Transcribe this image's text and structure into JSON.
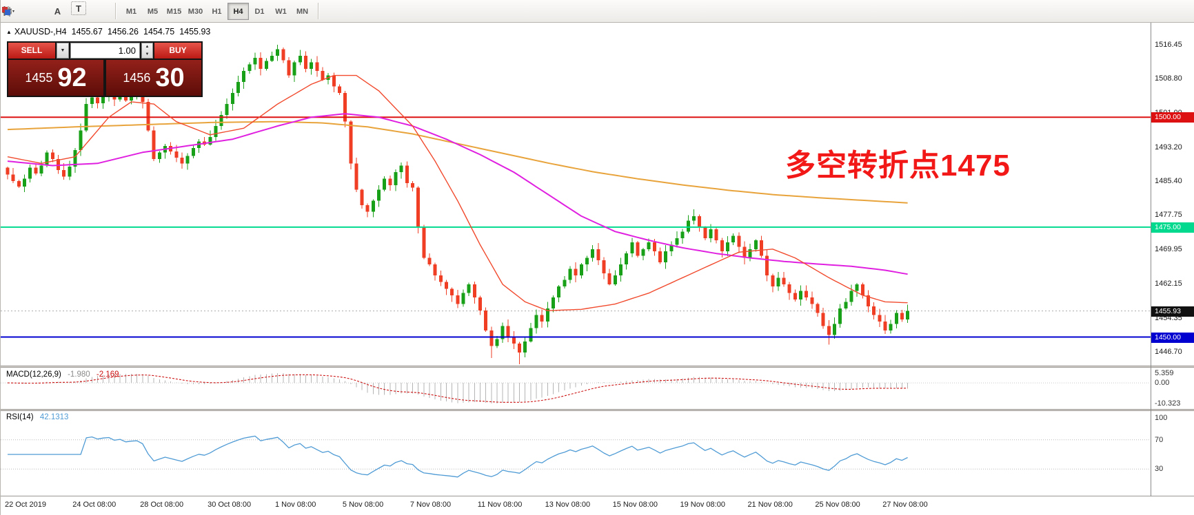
{
  "toolbar": {
    "icons": [
      {
        "name": "chart-type-icon"
      },
      {
        "name": "grid-icon"
      },
      {
        "name": "font-icon",
        "glyph": "A"
      },
      {
        "name": "text-label-icon",
        "glyph": "T"
      },
      {
        "name": "palette-icon"
      }
    ],
    "timeframes": [
      "M1",
      "M5",
      "M15",
      "M30",
      "H1",
      "H4",
      "D1",
      "W1",
      "MN"
    ],
    "active_timeframe": "H4"
  },
  "trade_panel": {
    "sell_label": "SELL",
    "buy_label": "BUY",
    "volume": "1.00",
    "sell_price": {
      "main": "1455",
      "pips": "92"
    },
    "buy_price": {
      "main": "1456",
      "pips": "30"
    }
  },
  "chart_header": {
    "symbol": "XAUUSD-,H4",
    "open": "1455.67",
    "high": "1456.26",
    "low": "1454.75",
    "close": "1455.93"
  },
  "annotation": {
    "text": "多空转折点1475",
    "color": "#f21818"
  },
  "chart_data": {
    "type": "candlestick",
    "symbol": "XAUUSD",
    "timeframe": "H4",
    "ylim": [
      1443.5,
      1521.5
    ],
    "open_rule": "previous_close",
    "candle_colors": {
      "up": "#18a018",
      "down": "#ef3e24"
    },
    "closes": [
      1487.0,
      1485.5,
      1484.2,
      1486.0,
      1488.5,
      1487.2,
      1489.0,
      1492.0,
      1490.5,
      1488.0,
      1486.5,
      1488.8,
      1492.5,
      1497.0,
      1503.0,
      1504.5,
      1503.2,
      1504.8,
      1505.5,
      1504.0,
      1505.2,
      1503.8,
      1504.6,
      1505.0,
      1503.5,
      1497.0,
      1490.5,
      1492.0,
      1493.5,
      1492.2,
      1490.8,
      1489.5,
      1491.2,
      1493.0,
      1494.5,
      1493.8,
      1495.5,
      1498.0,
      1500.5,
      1503.0,
      1505.5,
      1508.0,
      1510.5,
      1512.0,
      1513.5,
      1511.0,
      1512.8,
      1514.0,
      1515.5,
      1513.0,
      1509.5,
      1512.5,
      1514.0,
      1511.0,
      1512.5,
      1510.5,
      1508.5,
      1509.5,
      1507.0,
      1505.5,
      1499.0,
      1489.5,
      1483.5,
      1480.0,
      1478.5,
      1481.0,
      1483.5,
      1486.0,
      1484.5,
      1487.5,
      1489.0,
      1485.0,
      1484.0,
      1475.0,
      1468.0,
      1466.5,
      1464.0,
      1462.5,
      1461.0,
      1459.5,
      1457.5,
      1460.0,
      1462.0,
      1459.0,
      1456.0,
      1451.5,
      1448.0,
      1449.5,
      1452.5,
      1450.0,
      1448.5,
      1446.5,
      1449.0,
      1452.0,
      1455.0,
      1453.5,
      1456.5,
      1459.0,
      1461.5,
      1463.0,
      1465.5,
      1464.0,
      1466.5,
      1468.0,
      1470.0,
      1467.5,
      1464.5,
      1462.0,
      1464.0,
      1466.5,
      1469.0,
      1471.5,
      1468.5,
      1470.0,
      1471.5,
      1469.5,
      1467.0,
      1469.5,
      1471.0,
      1472.5,
      1474.0,
      1476.5,
      1477.5,
      1475.0,
      1472.5,
      1474.5,
      1472.0,
      1469.5,
      1471.5,
      1473.0,
      1470.5,
      1468.0,
      1470.0,
      1472.0,
      1468.5,
      1464.0,
      1461.5,
      1463.5,
      1462.0,
      1460.0,
      1458.5,
      1460.5,
      1459.0,
      1457.5,
      1455.5,
      1452.5,
      1450.5,
      1453.0,
      1456.5,
      1458.0,
      1460.5,
      1462.0,
      1459.5,
      1457.0,
      1455.0,
      1453.5,
      1451.5,
      1453.0,
      1455.5,
      1454.0,
      1455.93
    ],
    "high_overrides": {
      "48": 1516.45
    },
    "low_overrides": {
      "86": 1445.2,
      "91": 1443.8,
      "146": 1448.3
    },
    "price_ticks": [
      1516.45,
      1508.8,
      1501.0,
      1493.2,
      1485.4,
      1477.75,
      1469.95,
      1462.15,
      1454.35,
      1446.7
    ],
    "hlines": [
      {
        "value": 1500.0,
        "label": "1500.00",
        "color": "#dd1111"
      },
      {
        "value": 1475.0,
        "label": "1475.00",
        "color": "#00d98e"
      },
      {
        "value": 1450.0,
        "label": "1450.00",
        "color": "#0000d0"
      }
    ],
    "current_price": {
      "value": 1455.93,
      "label": "1455.93",
      "color": "#111111"
    },
    "date_ticks": [
      {
        "label": "22 Oct 2019",
        "bar": 0
      },
      {
        "label": "24 Oct 08:00",
        "bar": 14
      },
      {
        "label": "28 Oct 08:00",
        "bar": 26
      },
      {
        "label": "30 Oct 08:00",
        "bar": 38
      },
      {
        "label": "1 Nov 08:00",
        "bar": 50
      },
      {
        "label": "5 Nov 08:00",
        "bar": 62
      },
      {
        "label": "7 Nov 08:00",
        "bar": 74
      },
      {
        "label": "11 Nov 08:00",
        "bar": 86
      },
      {
        "label": "13 Nov 08:00",
        "bar": 98
      },
      {
        "label": "15 Nov 08:00",
        "bar": 110
      },
      {
        "label": "19 Nov 08:00",
        "bar": 122
      },
      {
        "label": "21 Nov 08:00",
        "bar": 134
      },
      {
        "label": "25 Nov 08:00",
        "bar": 146
      },
      {
        "label": "27 Nov 08:00",
        "bar": 158
      }
    ],
    "ma_lines": [
      {
        "name": "ma-slow",
        "color": "#e8a33b",
        "width": 2,
        "points": [
          [
            0,
            1497.2
          ],
          [
            12,
            1497.8
          ],
          [
            24,
            1498.3
          ],
          [
            36,
            1498.8
          ],
          [
            48,
            1499
          ],
          [
            56,
            1498.7
          ],
          [
            64,
            1497.8
          ],
          [
            72,
            1496.2
          ],
          [
            80,
            1494
          ],
          [
            88,
            1491.8
          ],
          [
            96,
            1489.6
          ],
          [
            104,
            1487.6
          ],
          [
            112,
            1486
          ],
          [
            120,
            1484.6
          ],
          [
            128,
            1483.4
          ],
          [
            136,
            1482.4
          ],
          [
            144,
            1481.7
          ],
          [
            152,
            1481.1
          ],
          [
            160,
            1480.5
          ]
        ]
      },
      {
        "name": "ma-mid",
        "color": "#e020e0",
        "width": 2,
        "points": [
          [
            0,
            1490
          ],
          [
            8,
            1489
          ],
          [
            16,
            1489.5
          ],
          [
            24,
            1492
          ],
          [
            32,
            1493.5
          ],
          [
            40,
            1495
          ],
          [
            48,
            1498
          ],
          [
            54,
            1500
          ],
          [
            60,
            1500.8
          ],
          [
            66,
            1500
          ],
          [
            72,
            1498
          ],
          [
            78,
            1495
          ],
          [
            84,
            1491.5
          ],
          [
            90,
            1487.5
          ],
          [
            96,
            1482.5
          ],
          [
            102,
            1477.5
          ],
          [
            108,
            1474
          ],
          [
            114,
            1472
          ],
          [
            120,
            1470.3
          ],
          [
            126,
            1469
          ],
          [
            132,
            1468
          ],
          [
            138,
            1467.2
          ],
          [
            144,
            1466.6
          ],
          [
            150,
            1466.1
          ],
          [
            156,
            1465.2
          ],
          [
            160,
            1464.3
          ]
        ]
      },
      {
        "name": "ma-fast",
        "color": "#f14a2d",
        "width": 1.4,
        "points": [
          [
            0,
            1491
          ],
          [
            6,
            1489.5
          ],
          [
            12,
            1491
          ],
          [
            18,
            1500
          ],
          [
            22,
            1503.5
          ],
          [
            26,
            1503
          ],
          [
            30,
            1499
          ],
          [
            36,
            1496
          ],
          [
            42,
            1497.5
          ],
          [
            48,
            1503
          ],
          [
            54,
            1507.5
          ],
          [
            58,
            1509.5
          ],
          [
            62,
            1509.5
          ],
          [
            66,
            1506
          ],
          [
            72,
            1498
          ],
          [
            76,
            1490
          ],
          [
            80,
            1481
          ],
          [
            84,
            1471
          ],
          [
            88,
            1462
          ],
          [
            92,
            1458
          ],
          [
            96,
            1456
          ],
          [
            102,
            1456.3
          ],
          [
            108,
            1457.5
          ],
          [
            114,
            1460
          ],
          [
            120,
            1463.5
          ],
          [
            126,
            1467
          ],
          [
            130,
            1469.3
          ],
          [
            136,
            1470
          ],
          [
            140,
            1468
          ],
          [
            146,
            1463.5
          ],
          [
            152,
            1459.5
          ],
          [
            156,
            1458
          ],
          [
            160,
            1457.8
          ]
        ]
      }
    ],
    "indicators": {
      "macd": {
        "label": "MACD(12,26,9)",
        "value_main": "-1.980",
        "value_signal": "-2.169",
        "axis": [
          "5.359",
          "0.00",
          "-10.323"
        ],
        "fast": 12,
        "slow": 26,
        "signal": 9,
        "histogram_color": "#b4b4b4",
        "signal_color": "#cc1111"
      },
      "rsi": {
        "label": "RSI(14)",
        "value": "42.1313",
        "axis": [
          "100",
          "70",
          "30"
        ],
        "levels": [
          70,
          30
        ],
        "period": 14,
        "color": "#4f9bd5"
      }
    }
  }
}
